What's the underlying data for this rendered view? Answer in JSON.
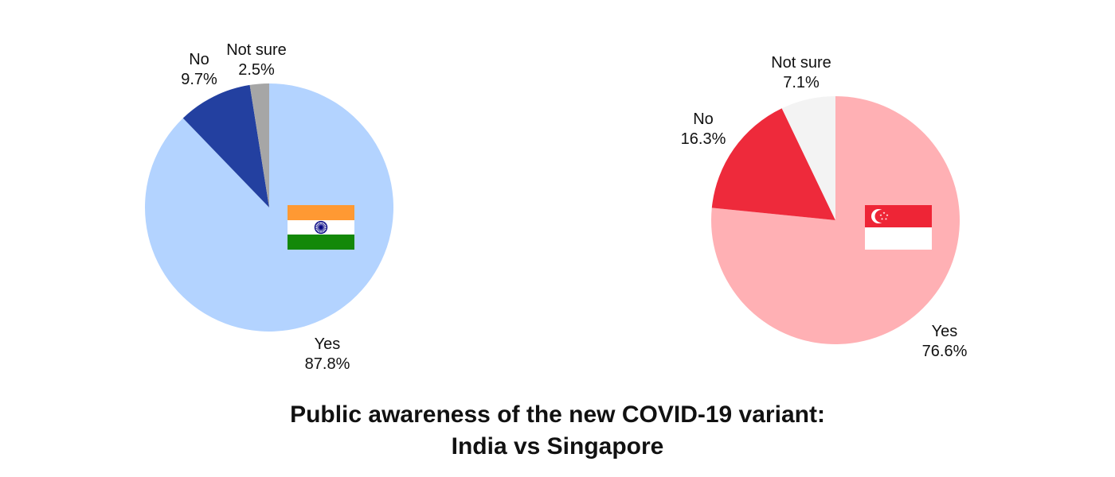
{
  "chart_data": [
    {
      "type": "pie",
      "flag": "india-flag",
      "slices": [
        {
          "label": "Yes",
          "value_label": "87.8%",
          "value": 87.8,
          "color": "#b3d3ff"
        },
        {
          "label": "No",
          "value_label": "9.7%",
          "value": 9.7,
          "color": "#2340a0"
        },
        {
          "label": "Not sure",
          "value_label": "2.5%",
          "value": 2.5,
          "color": "#a6a6a6"
        }
      ]
    },
    {
      "type": "pie",
      "flag": "singapore-flag",
      "slices": [
        {
          "label": "Yes",
          "value_label": "76.6%",
          "value": 76.6,
          "color": "#ffb0b4"
        },
        {
          "label": "No",
          "value_label": "16.3%",
          "value": 16.3,
          "color": "#ee2a3b"
        },
        {
          "label": "Not sure",
          "value_label": "7.1%",
          "value": 7.1,
          "color": "#f3f3f3"
        }
      ]
    }
  ],
  "title": {
    "line1": "Public awareness of the new COVID-19 variant:",
    "line2": "India vs Singapore"
  },
  "flags": {
    "india": {
      "saffron": "#ff9933",
      "white": "#ffffff",
      "green": "#138808",
      "chakra": "#000080"
    },
    "singapore": {
      "red": "#ee2536",
      "white": "#ffffff"
    }
  }
}
